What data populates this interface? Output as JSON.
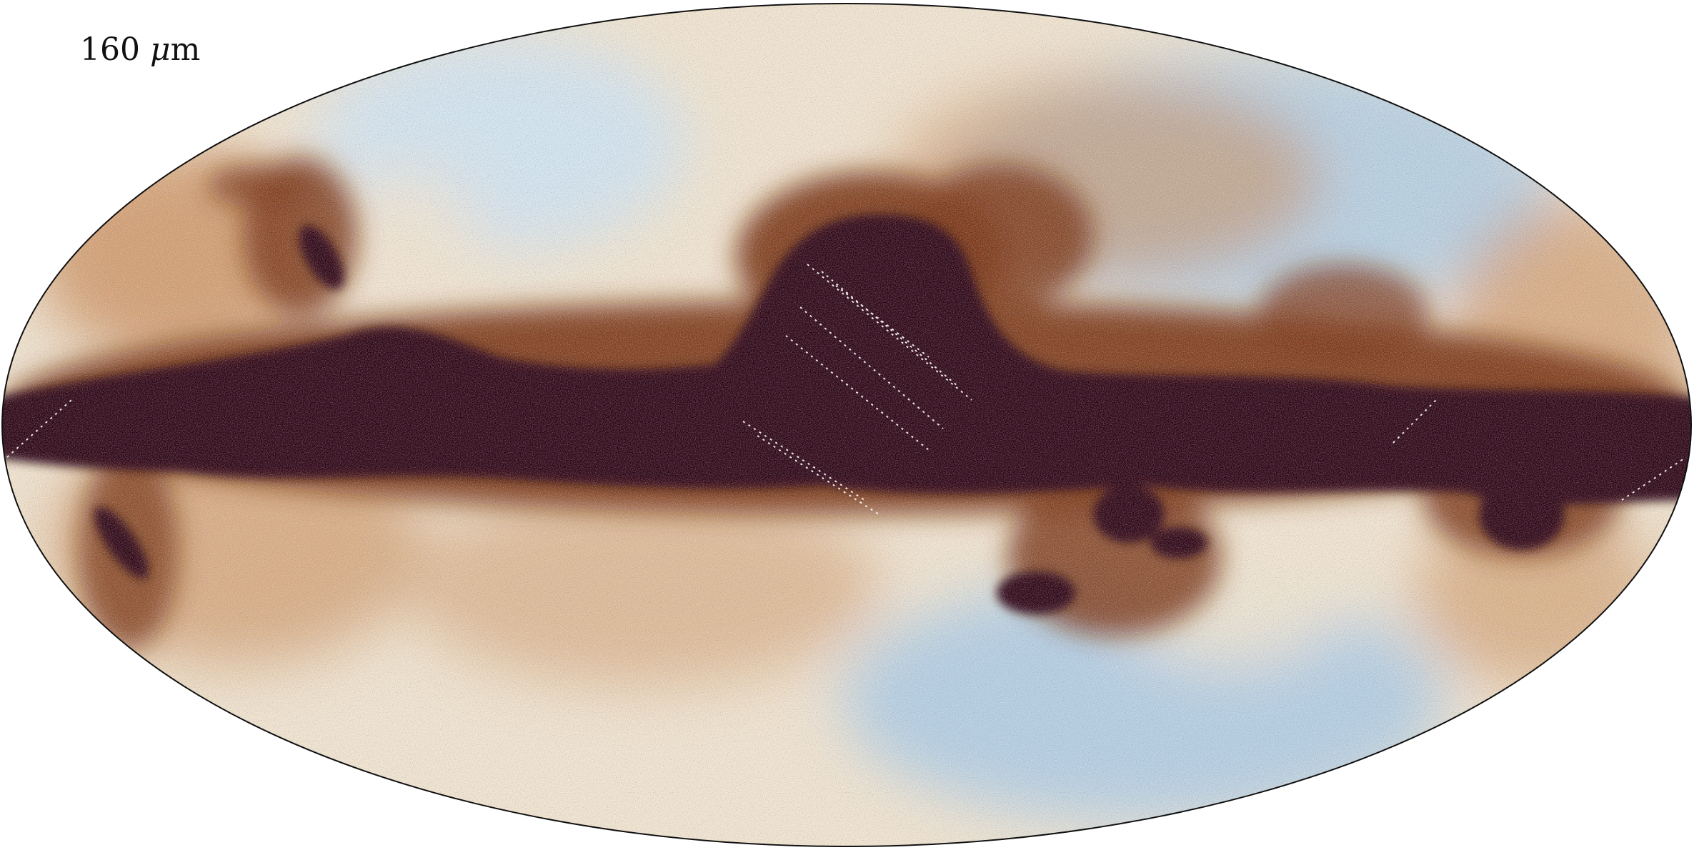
{
  "map": {
    "band_value": "160",
    "band_unit_symbol": "μ",
    "band_unit": "m",
    "projection": "mollweide",
    "colors": {
      "dark": "#2a030d",
      "brown": "#7a3210",
      "orange": "#c8864c",
      "cream": "#f2e4cc",
      "paleblue": "#cfe3ef",
      "lightblue": "#9ec6e6",
      "blue": "#5f8fd0",
      "outline": "#111111"
    }
  }
}
